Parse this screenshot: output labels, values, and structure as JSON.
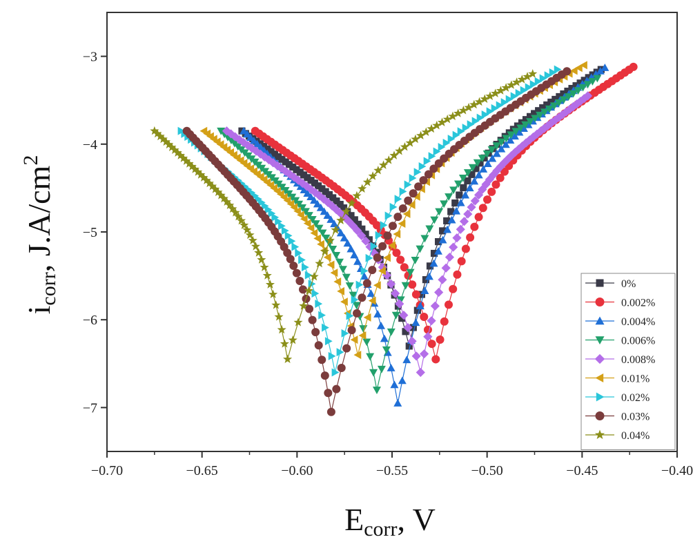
{
  "chart_data": {
    "type": "scatter",
    "title": "",
    "xlabel": {
      "main": "E",
      "sub": "corr",
      "rest": ", V"
    },
    "ylabel": {
      "main": "i",
      "sub": "corr",
      "rest": ", J.A/cm",
      "sup": "2"
    },
    "xlim": [
      -0.7,
      -0.4
    ],
    "ylim": [
      -7.5,
      -2.5
    ],
    "xticks": [
      -0.7,
      -0.65,
      -0.6,
      -0.55,
      -0.5,
      -0.45,
      -0.4
    ],
    "xtick_labels": [
      "−0.70",
      "−0.65",
      "−0.60",
      "−0.55",
      "−0.50",
      "−0.45",
      "−0.40"
    ],
    "yticks": [
      -7,
      -6,
      -5,
      -4,
      -3
    ],
    "ytick_labels": [
      "−7",
      "−6",
      "−5",
      "−4",
      "−3"
    ],
    "grid": false,
    "legend_position": "bottom-right",
    "series": [
      {
        "name": "0%",
        "color": "#3a3a48",
        "marker": "square",
        "Ecorr": -0.541,
        "icorr": -6.3,
        "Ec_start": -0.629,
        "ic_start": -3.85,
        "Ea_end": -0.44,
        "ia_end": -3.15
      },
      {
        "name": "0.002%",
        "color": "#e8323c",
        "marker": "circle",
        "Ecorr": -0.527,
        "icorr": -6.45,
        "Ec_start": -0.622,
        "ic_start": -3.85,
        "Ea_end": -0.423,
        "ia_end": -3.12
      },
      {
        "name": "0.004%",
        "color": "#1f6fd6",
        "marker": "triangle-up",
        "Ecorr": -0.547,
        "icorr": -6.95,
        "Ec_start": -0.628,
        "ic_start": -3.85,
        "Ea_end": -0.438,
        "ia_end": -3.13
      },
      {
        "name": "0.006%",
        "color": "#22a06b",
        "marker": "triangle-down",
        "Ecorr": -0.558,
        "icorr": -6.8,
        "Ec_start": -0.64,
        "ic_start": -3.85,
        "Ea_end": -0.442,
        "ia_end": -3.25
      },
      {
        "name": "0.008%",
        "color": "#b46ee8",
        "marker": "diamond",
        "Ecorr": -0.535,
        "icorr": -6.6,
        "Ec_start": -0.637,
        "ic_start": -3.85,
        "Ea_end": -0.447,
        "ia_end": -3.45
      },
      {
        "name": "0.01%",
        "color": "#d4a017",
        "marker": "triangle-left",
        "Ecorr": -0.568,
        "icorr": -6.4,
        "Ec_start": -0.649,
        "ic_start": -3.85,
        "Ea_end": -0.449,
        "ia_end": -3.1
      },
      {
        "name": "0.02%",
        "color": "#2ac6da",
        "marker": "triangle-right",
        "Ecorr": -0.58,
        "icorr": -6.6,
        "Ec_start": -0.661,
        "ic_start": -3.85,
        "Ea_end": -0.463,
        "ia_end": -3.15
      },
      {
        "name": "0.03%",
        "color": "#7b3c3c",
        "marker": "circle",
        "Ecorr": -0.582,
        "icorr": -7.05,
        "Ec_start": -0.658,
        "ic_start": -3.85,
        "Ea_end": -0.458,
        "ia_end": -3.17
      },
      {
        "name": "0.04%",
        "color": "#8b8f1a",
        "marker": "star",
        "Ecorr": -0.605,
        "icorr": -6.45,
        "Ec_start": -0.675,
        "ic_start": -3.85,
        "Ea_end": -0.476,
        "ia_end": -3.2
      }
    ]
  }
}
